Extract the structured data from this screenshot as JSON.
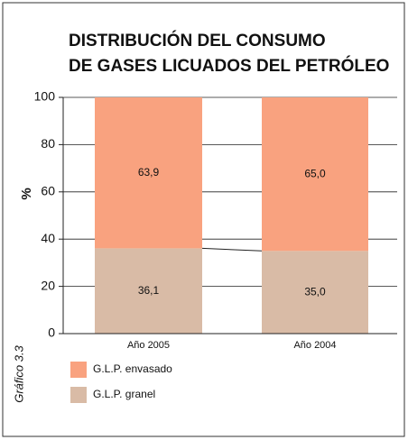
{
  "chart_data": {
    "type": "stacked_bar",
    "title": [
      "DISTRIBUCIÓN DEL CONSUMO",
      "DE GASES LICUADOS DEL PETRÓLEO"
    ],
    "y_label": "%",
    "annotation": "Gráfico 3.3",
    "categories": [
      "Año  2005",
      "Año  2004"
    ],
    "series": [
      {
        "name": "G.L.P. granel",
        "color": "#d9bba6",
        "values": [
          36.1,
          35.0
        ],
        "value_labels": [
          "36,1",
          "35,0"
        ]
      },
      {
        "name": "G.L.P. envasado",
        "color": "#f9a27f",
        "values": [
          63.9,
          65.0
        ],
        "value_labels": [
          "63,9",
          "65,0"
        ]
      }
    ],
    "ylim": [
      0,
      100
    ],
    "yticks": [
      0,
      20,
      40,
      60,
      80,
      100
    ],
    "grid": true
  }
}
